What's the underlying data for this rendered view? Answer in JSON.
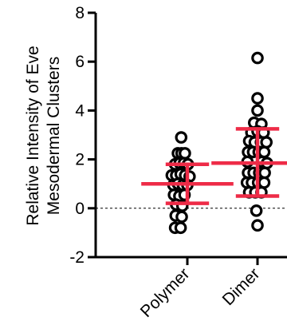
{
  "chart_data": {
    "type": "scatter",
    "title": "",
    "ylabel_lines": [
      "Relative Intensity of Eve",
      "Mesodermal Clusters"
    ],
    "xlabel": "",
    "ylim": [
      -2,
      8
    ],
    "yticks": [
      "-2",
      "0",
      "2",
      "4",
      "6",
      "8"
    ],
    "ytick_values": [
      -2,
      0,
      2,
      4,
      6,
      8
    ],
    "reference_line": 0,
    "categories": [
      "Polymer",
      "Dimer"
    ],
    "series": [
      {
        "category": "Polymer",
        "mean": 1.0,
        "error_low": 0.2,
        "error_high": 1.8,
        "points": [
          [
            -0.55,
            2.9
          ],
          [
            -0.85,
            2.25
          ],
          [
            -0.52,
            2.25
          ],
          [
            -0.22,
            2.25
          ],
          [
            -1.1,
            1.8
          ],
          [
            -0.68,
            1.85
          ],
          [
            -0.3,
            1.85
          ],
          [
            0.05,
            1.8
          ],
          [
            -1.4,
            1.35
          ],
          [
            -1.0,
            1.35
          ],
          [
            -0.6,
            1.4
          ],
          [
            -0.2,
            1.35
          ],
          [
            0.2,
            1.3
          ],
          [
            -1.25,
            0.95
          ],
          [
            -0.85,
            1.0
          ],
          [
            -0.4,
            0.95
          ],
          [
            0.0,
            0.95
          ],
          [
            -1.2,
            0.55
          ],
          [
            -0.72,
            0.5
          ],
          [
            -0.25,
            0.55
          ],
          [
            -1.0,
            0.15
          ],
          [
            -0.45,
            0.1
          ],
          [
            -1.05,
            -0.3
          ],
          [
            -0.5,
            -0.35
          ],
          [
            -1.1,
            -0.8
          ],
          [
            -0.6,
            -0.8
          ]
        ]
      },
      {
        "category": "Dimer",
        "mean": 1.85,
        "error_low": 0.5,
        "error_high": 3.25,
        "points": [
          [
            0.0,
            6.15
          ],
          [
            0.0,
            4.5
          ],
          [
            0.0,
            4.0
          ],
          [
            -0.3,
            3.5
          ],
          [
            0.35,
            3.45
          ],
          [
            -0.55,
            3.1
          ],
          [
            0.0,
            3.15
          ],
          [
            0.55,
            3.1
          ],
          [
            -0.75,
            2.75
          ],
          [
            -0.25,
            2.7
          ],
          [
            0.3,
            2.7
          ],
          [
            0.8,
            2.7
          ],
          [
            -0.85,
            2.3
          ],
          [
            -0.4,
            2.3
          ],
          [
            0.1,
            2.3
          ],
          [
            0.6,
            2.3
          ],
          [
            -0.9,
            1.9
          ],
          [
            0.4,
            1.9
          ],
          [
            0.85,
            1.85
          ],
          [
            -0.85,
            1.45
          ],
          [
            -0.35,
            1.45
          ],
          [
            0.15,
            1.45
          ],
          [
            0.65,
            1.45
          ],
          [
            -0.95,
            1.05
          ],
          [
            -0.5,
            1.05
          ],
          [
            0.05,
            1.05
          ],
          [
            0.6,
            1.05
          ],
          [
            -0.75,
            0.65
          ],
          [
            -0.2,
            0.65
          ],
          [
            0.35,
            0.65
          ],
          [
            -0.1,
            -0.1
          ],
          [
            0.0,
            -0.7
          ]
        ]
      }
    ],
    "marker_color": "#000000",
    "error_bar_color": "#ee2b47",
    "grid": false,
    "legend": "none"
  }
}
